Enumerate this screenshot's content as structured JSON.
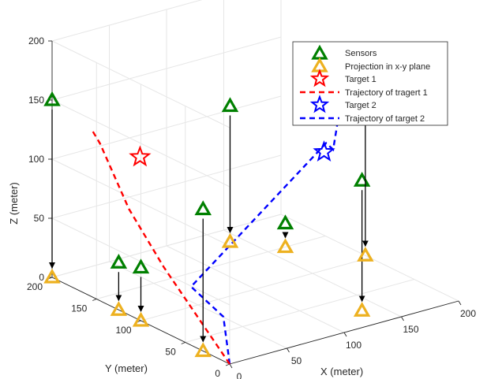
{
  "chart_data": {
    "type": "scatter",
    "projection": "3d",
    "xlabel": "X (meter)",
    "ylabel": "Y (meter)",
    "zlabel": "Z (meter)",
    "xlim": [
      0,
      200
    ],
    "ylim": [
      0,
      200
    ],
    "zlim": [
      0,
      200
    ],
    "x_ticks": [
      "0",
      "50",
      "100",
      "150",
      "200"
    ],
    "y_ticks": [
      "0",
      "50",
      "100",
      "150",
      "200"
    ],
    "z_ticks": [
      "0",
      "50",
      "100",
      "150",
      "200"
    ],
    "grid": true,
    "legend_position": "top-right",
    "legend": [
      {
        "label": "Sensors",
        "marker": "triangle",
        "color": "#008000"
      },
      {
        "label": "Projection in x-y plane",
        "marker": "triangle",
        "color": "#EDB120"
      },
      {
        "label": "Target 1",
        "marker": "star",
        "color": "#FF0000"
      },
      {
        "label": "Trajectory of tragert 1",
        "marker": "dashed-line",
        "color": "#FF0000"
      },
      {
        "label": "Target 2",
        "marker": "star",
        "color": "#0000FF"
      },
      {
        "label": "Trajectory of target 2",
        "marker": "dashed-line",
        "color": "#0000FF"
      }
    ],
    "sensors": [
      {
        "x": 0,
        "y": 200,
        "z": 150
      },
      {
        "x": 0,
        "y": 125,
        "z": 40
      },
      {
        "x": 0,
        "y": 100,
        "z": 45
      },
      {
        "x": 0,
        "y": 30,
        "z": 120
      },
      {
        "x": 140,
        "y": 180,
        "z": 115
      },
      {
        "x": 135,
        "y": 25,
        "z": 110
      },
      {
        "x": 200,
        "y": 105,
        "z": 150
      },
      {
        "x": 165,
        "y": 150,
        "z": 20
      }
    ],
    "target_1": {
      "x": 38,
      "y": 150,
      "z": 110
    },
    "trajectory_1": [
      {
        "x": 0,
        "y": 0,
        "z": 0
      },
      {
        "x": 20,
        "y": 100,
        "z": 40
      },
      {
        "x": 40,
        "y": 165,
        "z": 60
      },
      {
        "x": 38,
        "y": 195,
        "z": 105
      },
      {
        "x": 35,
        "y": 200,
        "z": 115
      }
    ],
    "target_2": {
      "x": 160,
      "y": 100,
      "z": 100
    },
    "trajectory_2": [
      {
        "x": 0,
        "y": 0,
        "z": 0
      },
      {
        "x": 10,
        "y": 20,
        "z": 30
      },
      {
        "x": 40,
        "y": 95,
        "z": 20
      },
      {
        "x": 158,
        "y": 95,
        "z": 110
      },
      {
        "x": 168,
        "y": 100,
        "z": 100
      },
      {
        "x": 175,
        "y": 100,
        "z": 140
      }
    ]
  },
  "colors": {
    "sensor": "#008000",
    "projection": "#EDB120",
    "target1": "#FF0000",
    "target2": "#0000FF",
    "grid": "#E6E6E6",
    "axis": "#262626"
  }
}
